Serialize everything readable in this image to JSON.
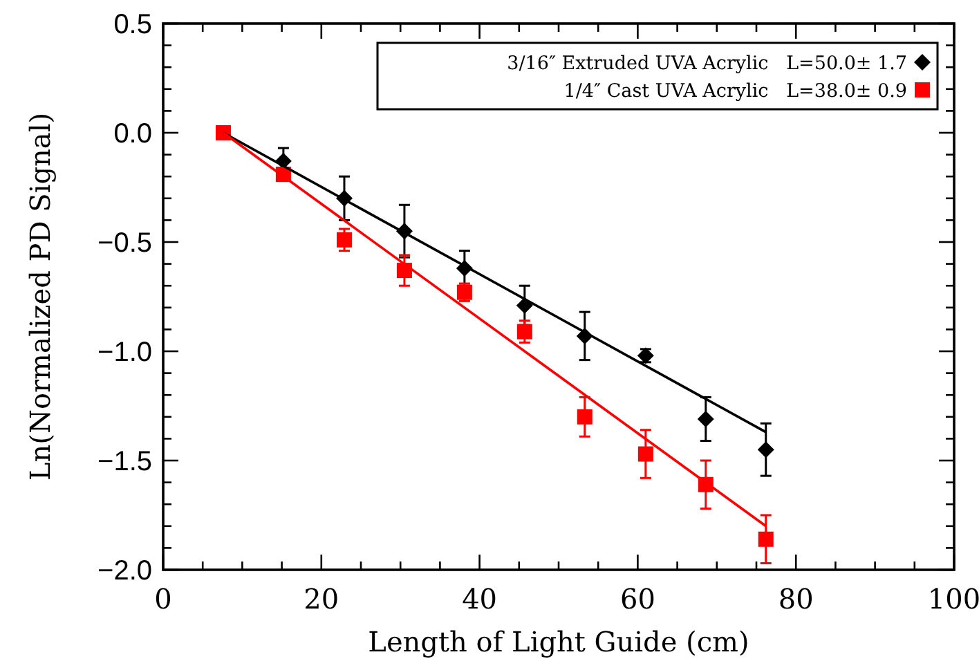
{
  "chart_data": {
    "type": "scatter",
    "xlabel": "Length of Light Guide (cm)",
    "ylabel": "Ln(Normalized PD Signal)",
    "xlim": [
      0,
      100
    ],
    "ylim": [
      -2.0,
      0.5
    ],
    "xticks": [
      0,
      {
        "value": 5,
        "label": null
      },
      {
        "value": 10,
        "label": null
      },
      {
        "value": 15,
        "label": null
      },
      20,
      {
        "value": 25,
        "label": null
      },
      {
        "value": 30,
        "label": null
      },
      {
        "value": 35,
        "label": null
      },
      40,
      {
        "value": 45,
        "label": null
      },
      {
        "value": 50,
        "label": null
      },
      {
        "value": 55,
        "label": null
      },
      60,
      {
        "value": 65,
        "label": null
      },
      {
        "value": 70,
        "label": null
      },
      {
        "value": 75,
        "label": null
      },
      80,
      {
        "value": 85,
        "label": null
      },
      {
        "value": 90,
        "label": null
      },
      {
        "value": 95,
        "label": null
      },
      100
    ],
    "yticks": [
      {
        "value": -2.0,
        "label": "−2.0"
      },
      {
        "value": -1.9,
        "label": null
      },
      {
        "value": -1.8,
        "label": null
      },
      {
        "value": -1.7,
        "label": null
      },
      {
        "value": -1.6,
        "label": null
      },
      {
        "value": -1.5,
        "label": "−1.5"
      },
      {
        "value": -1.4,
        "label": null
      },
      {
        "value": -1.3,
        "label": null
      },
      {
        "value": -1.2,
        "label": null
      },
      {
        "value": -1.1,
        "label": null
      },
      {
        "value": -1.0,
        "label": "−1.0"
      },
      {
        "value": -0.9,
        "label": null
      },
      {
        "value": -0.8,
        "label": null
      },
      {
        "value": -0.7,
        "label": null
      },
      {
        "value": -0.6,
        "label": null
      },
      {
        "value": -0.5,
        "label": "−0.5"
      },
      {
        "value": -0.4,
        "label": null
      },
      {
        "value": -0.3,
        "label": null
      },
      {
        "value": -0.2,
        "label": null
      },
      {
        "value": -0.1,
        "label": null
      },
      {
        "value": 0.0,
        "label": "0.0"
      },
      {
        "value": 0.1,
        "label": null
      },
      {
        "value": 0.2,
        "label": null
      },
      {
        "value": 0.3,
        "label": null
      },
      {
        "value": 0.4,
        "label": null
      },
      {
        "value": 0.5,
        "label": "0.5"
      }
    ],
    "legend": "top right",
    "grid": false,
    "series": [
      {
        "name": "3/16″ Extruded UVA Acrylic   L=50.0± 1.7",
        "marker": "diamond",
        "color": "#000000",
        "x": [
          15.2,
          22.9,
          30.5,
          38.1,
          45.7,
          53.3,
          61.0,
          68.6,
          76.2
        ],
        "values": [
          -0.13,
          -0.3,
          -0.45,
          -0.62,
          -0.79,
          -0.93,
          -1.02,
          -1.31,
          -1.45
        ],
        "errors": [
          0.06,
          0.1,
          0.12,
          0.08,
          0.09,
          0.11,
          0.03,
          0.1,
          0.12
        ]
      },
      {
        "name": "1/4″ Cast UVA Acrylic   L=38.0± 0.9",
        "marker": "square",
        "color": "#ff0000",
        "x": [
          7.6,
          15.2,
          22.9,
          30.5,
          38.1,
          45.7,
          53.3,
          61.0,
          68.6,
          76.2
        ],
        "values": [
          0,
          -0.19,
          -0.49,
          -0.63,
          -0.73,
          -0.91,
          -1.3,
          -1.47,
          -1.61,
          -1.86
        ],
        "errors": [
          0.01,
          0.02,
          0.05,
          0.07,
          0.04,
          0.05,
          0.09,
          0.11,
          0.11,
          0.11
        ]
      },
      {
        "type": "line",
        "marker": "none",
        "color": "#000000",
        "x": [
          7.6,
          76.2
        ],
        "values": [
          0,
          -1.37
        ]
      },
      {
        "type": "line",
        "marker": "none",
        "color": "#ff0000",
        "x": [
          7.6,
          76.2
        ],
        "values": [
          0,
          -1.8
        ]
      }
    ]
  }
}
